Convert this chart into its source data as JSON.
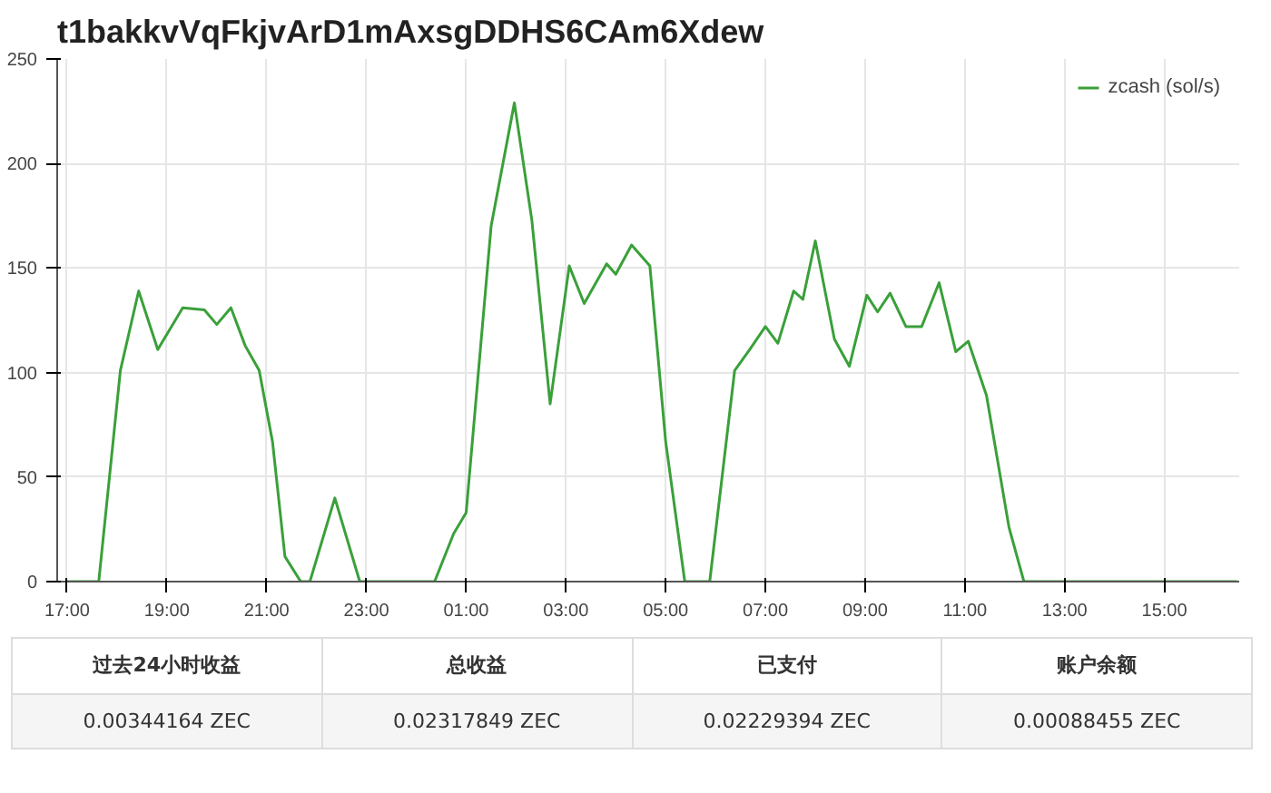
{
  "chart_data": {
    "type": "line",
    "title": "t1bakkvVqFkjvArD1mAxsgDDHS6CAm6Xdew",
    "x": [
      "2000-01-01T17:00",
      "2000-01-01T17:38",
      "2000-01-01T18:04",
      "2000-01-01T18:26",
      "2000-01-01T18:49",
      "2000-01-01T19:19",
      "2000-01-01T19:45",
      "2000-01-01T20:00",
      "2000-01-01T20:17",
      "2000-01-01T20:34",
      "2000-01-01T20:51",
      "2000-01-01T21:07",
      "2000-01-01T21:22",
      "2000-01-01T21:41",
      "2000-01-01T21:52",
      "2000-01-01T22:22",
      "2000-01-01T22:52",
      "2000-01-02T00:22",
      "2000-01-02T00:45",
      "2000-01-02T01:00",
      "2000-01-02T01:30",
      "2000-01-02T01:58",
      "2000-01-02T02:19",
      "2000-01-02T02:41",
      "2000-01-02T03:04",
      "2000-01-02T03:22",
      "2000-01-02T03:49",
      "2000-01-02T04:00",
      "2000-01-02T04:19",
      "2000-01-02T04:41",
      "2000-01-02T05:00",
      "2000-01-02T05:23",
      "2000-01-02T05:53",
      "2000-01-02T06:23",
      "2000-01-02T06:41",
      "2000-01-02T07:00",
      "2000-01-02T07:15",
      "2000-01-02T07:34",
      "2000-01-02T07:45",
      "2000-01-02T08:00",
      "2000-01-02T08:23",
      "2000-01-02T08:41",
      "2000-01-02T09:02",
      "2000-01-02T09:15",
      "2000-01-02T09:30",
      "2000-01-02T09:49",
      "2000-01-02T10:08",
      "2000-01-02T10:29",
      "2000-01-02T10:49",
      "2000-01-02T11:04",
      "2000-01-02T11:26",
      "2000-01-02T11:53",
      "2000-01-02T12:11",
      "2000-01-02T16:27"
    ],
    "series": [
      {
        "name": "zcash (sol/s)",
        "color": "#3aa03a",
        "values": [
          0,
          0,
          101,
          139,
          111,
          131,
          130,
          123,
          131,
          113,
          101,
          67,
          12,
          0,
          0,
          40,
          0,
          0,
          23,
          33,
          170,
          229,
          173,
          85,
          151,
          133,
          152,
          147,
          161,
          151,
          67,
          0,
          0,
          101,
          111,
          122,
          114,
          139,
          135,
          163,
          116,
          103,
          137,
          129,
          138,
          122,
          122,
          143,
          110,
          115,
          89,
          26,
          0,
          0
        ]
      }
    ],
    "xlim": [
      "2000-01-01T16:48",
      "2000-01-02T16:30"
    ],
    "xticks": [
      {
        "value": "2000-01-01T17:00",
        "label": "17:00"
      },
      {
        "value": "2000-01-01T19:00",
        "label": "19:00"
      },
      {
        "value": "2000-01-01T21:00",
        "label": "21:00"
      },
      {
        "value": "2000-01-01T23:00",
        "label": "23:00"
      },
      {
        "value": "2000-01-02T01:00",
        "label": "01:00"
      },
      {
        "value": "2000-01-02T03:00",
        "label": "03:00"
      },
      {
        "value": "2000-01-02T05:00",
        "label": "05:00"
      },
      {
        "value": "2000-01-02T07:00",
        "label": "07:00"
      },
      {
        "value": "2000-01-02T09:00",
        "label": "09:00"
      },
      {
        "value": "2000-01-02T11:00",
        "label": "11:00"
      },
      {
        "value": "2000-01-02T13:00",
        "label": "13:00"
      },
      {
        "value": "2000-01-02T15:00",
        "label": "15:00"
      }
    ],
    "ylim": [
      0,
      250
    ],
    "yticks": [
      0,
      50,
      100,
      150,
      200,
      250
    ],
    "grid": true,
    "legend": "top right",
    "marker": "none",
    "line_style": "solid",
    "annotations": [
      "过去24小时收益",
      "总收益",
      "已支付",
      "账户余额",
      "0.00344164 ZEC",
      "0.02317849 ZEC",
      "0.02229394 ZEC",
      "0.00088455 ZEC"
    ]
  }
}
